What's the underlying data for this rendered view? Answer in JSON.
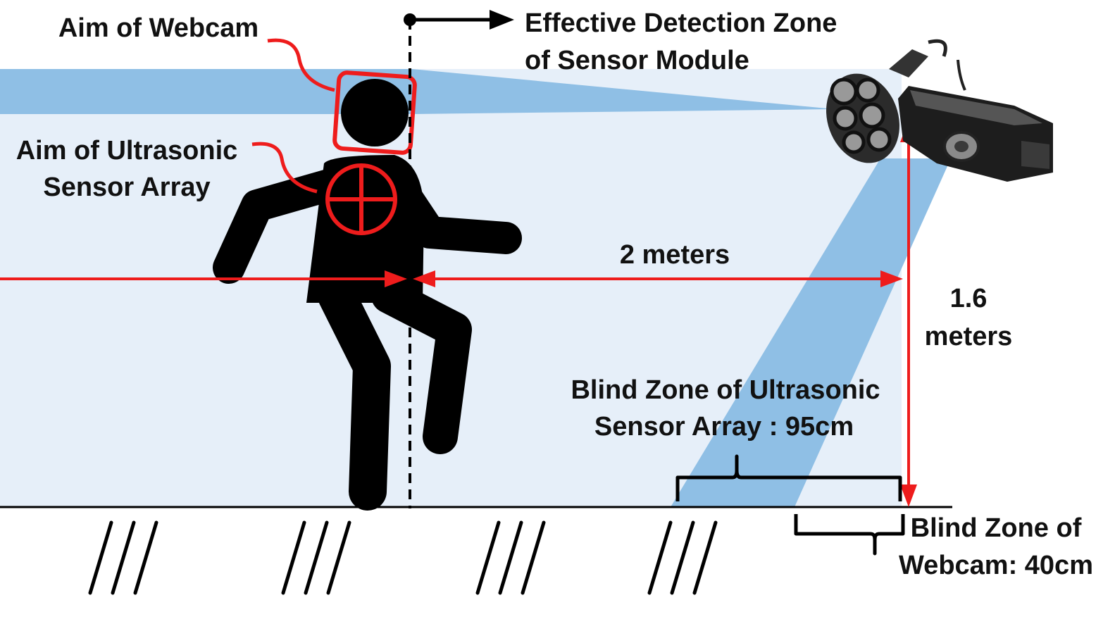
{
  "labels": {
    "aim_webcam": "Aim of Webcam",
    "aim_ultrasonic_line1": "Aim of Ultrasonic",
    "aim_ultrasonic_line2": "Sensor Array",
    "effective_zone_line1": "Effective Detection Zone",
    "effective_zone_line2": "of Sensor Module",
    "distance": "2 meters",
    "height_line1": "1.6",
    "height_line2": "meters",
    "blind_ultrasonic_line1": "Blind Zone of Ultrasonic",
    "blind_ultrasonic_line2": "Sensor Array : 95cm",
    "blind_webcam_line1": "Blind Zone of",
    "blind_webcam_line2": "Webcam: 40cm"
  },
  "colors": {
    "zone_light": "#e6eff9",
    "beam": "#8fbfe5",
    "marker": "#ee1c1c",
    "figure": "#000000"
  },
  "icons": [
    "webcam-icon",
    "ultrasonic-sensor-icon",
    "person-figure-icon",
    "crosshair-icon",
    "ground-hatch-icon"
  ]
}
